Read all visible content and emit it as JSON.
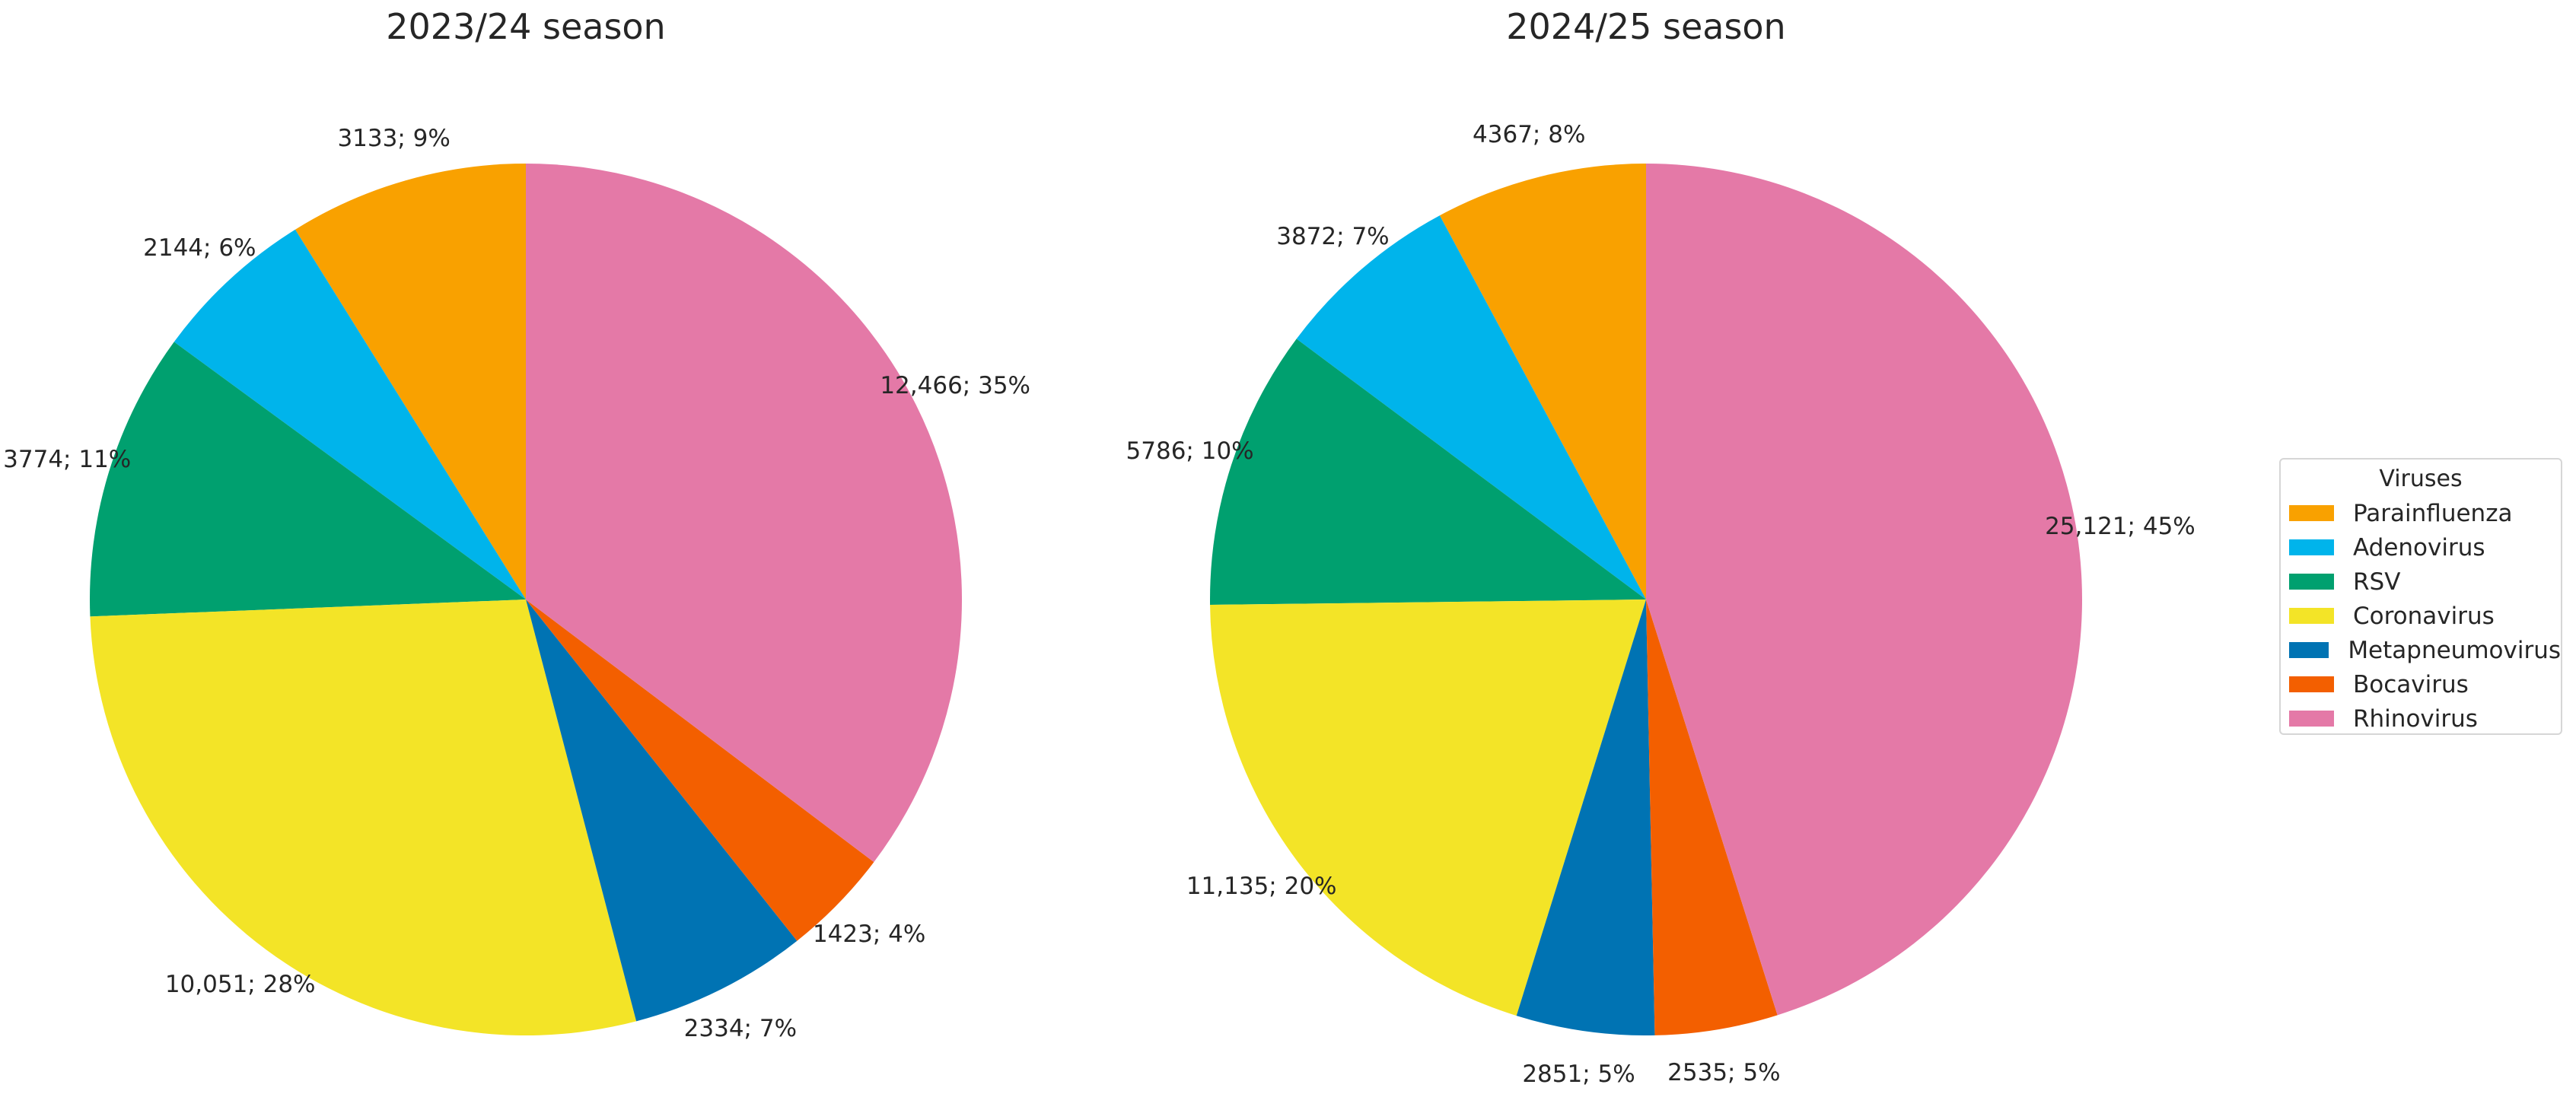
{
  "chart_data": [
    {
      "type": "pie",
      "title": "2023/24 season",
      "categories": [
        "Parainfluenza",
        "Adenovirus",
        "RSV",
        "Coronavirus",
        "Metapneumovirus",
        "Bocavirus",
        "Rhinovirus"
      ],
      "values": [
        3133,
        2144,
        3774,
        10051,
        2334,
        1423,
        12466
      ],
      "percentages": [
        9,
        6,
        11,
        28,
        7,
        4,
        35
      ],
      "labels": [
        "3133; 9%",
        "2144; 6%",
        "3774; 11%",
        "10,051; 28%",
        "2334; 7%",
        "1423; 4%",
        "12,466; 35%"
      ],
      "start_angle": 90,
      "direction": "counterclockwise"
    },
    {
      "type": "pie",
      "title": "2024/25 season",
      "categories": [
        "Parainfluenza",
        "Adenovirus",
        "RSV",
        "Coronavirus",
        "Metapneumovirus",
        "Bocavirus",
        "Rhinovirus"
      ],
      "values": [
        4367,
        3872,
        5786,
        11135,
        2851,
        2535,
        25121
      ],
      "percentages": [
        8,
        7,
        10,
        20,
        5,
        5,
        45
      ],
      "labels": [
        "4367; 8%",
        "3872; 7%",
        "5786; 10%",
        "11,135; 20%",
        "2851; 5%",
        "2535; 5%",
        "25,121; 45%"
      ],
      "start_angle": 90,
      "direction": "counterclockwise"
    }
  ],
  "legend": {
    "title": "Viruses",
    "position": "right",
    "items": [
      {
        "label": "Parainfluenza",
        "color": "#F9A100"
      },
      {
        "label": "Adenovirus",
        "color": "#00B4EB"
      },
      {
        "label": "RSV",
        "color": "#00A06F"
      },
      {
        "label": "Coronavirus",
        "color": "#F3E427"
      },
      {
        "label": "Metapneumovirus",
        "color": "#0073B3"
      },
      {
        "label": "Bocavirus",
        "color": "#F35F00"
      },
      {
        "label": "Rhinovirus",
        "color": "#E479A7"
      }
    ]
  }
}
